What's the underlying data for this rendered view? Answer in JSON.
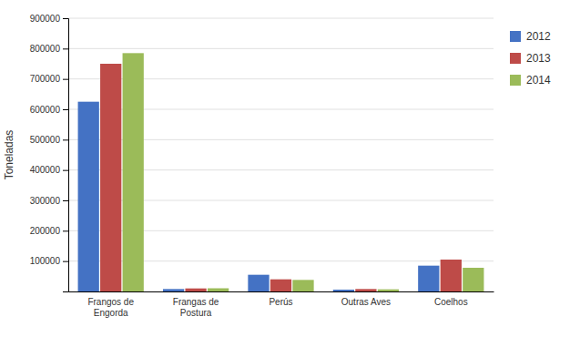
{
  "chart_data": {
    "type": "bar",
    "categories": [
      "Frangos de\nEngorda",
      "Frangas de\nPostura",
      "Perús",
      "Outras Aves",
      "Coelhos"
    ],
    "series": [
      {
        "name": "2012",
        "color": "#4472C4",
        "values": [
          625000,
          8000,
          55000,
          6000,
          85000
        ]
      },
      {
        "name": "2013",
        "color": "#BE4B48",
        "values": [
          750000,
          10000,
          40000,
          8000,
          105000
        ]
      },
      {
        "name": "2014",
        "color": "#9BBB59",
        "values": [
          785000,
          10500,
          38000,
          7000,
          78000
        ]
      }
    ],
    "ylabel": "Toneladas",
    "ylim": [
      0,
      900000
    ],
    "yticks": [
      100000,
      200000,
      300000,
      400000,
      500000,
      600000,
      700000,
      800000,
      900000
    ],
    "grid": true,
    "legend": "right"
  }
}
